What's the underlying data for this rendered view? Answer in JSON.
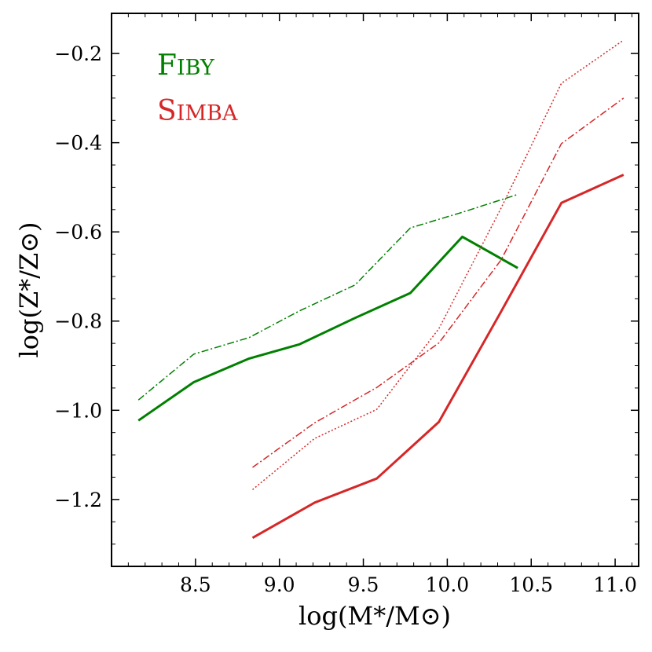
{
  "chart_data": {
    "type": "line",
    "title": "",
    "xlabel": "log(M*/M⊙)",
    "ylabel": "log(Z*/Z⊙)",
    "xlim": [
      8.0,
      11.14
    ],
    "ylim": [
      -1.35,
      -0.11
    ],
    "xticks": [
      8.5,
      9.0,
      9.5,
      10.0,
      10.5,
      11.0
    ],
    "xtick_labels": [
      "8.5",
      "9.0",
      "9.5",
      "10.0",
      "10.5",
      "11.0"
    ],
    "yticks": [
      -1.2,
      -1.0,
      -0.8,
      -0.6,
      -0.4,
      -0.2
    ],
    "ytick_labels": [
      "−1.2",
      "−1.0",
      "−0.8",
      "−0.6",
      "−0.4",
      "−0.2"
    ],
    "legend": [
      {
        "label": "FiBY",
        "color": "#008000"
      },
      {
        "label": "Simba",
        "color": "#d62728"
      }
    ],
    "legend_position": "top-left",
    "series": [
      {
        "name": "FiBY",
        "style": "solid",
        "color": "#008000",
        "x": [
          8.16,
          8.49,
          8.82,
          9.12,
          9.45,
          9.78,
          10.09,
          10.42
        ],
        "y": [
          -1.023,
          -0.937,
          -0.884,
          -0.852,
          -0.793,
          -0.737,
          -0.611,
          -0.681
        ]
      },
      {
        "name": "FiBY",
        "style": "dashdot",
        "color": "#008000",
        "x": [
          8.16,
          8.49,
          8.82,
          9.12,
          9.45,
          9.78,
          10.09,
          10.42
        ],
        "y": [
          -0.977,
          -0.874,
          -0.837,
          -0.777,
          -0.719,
          -0.591,
          -0.556,
          -0.516
        ]
      },
      {
        "name": "Simba",
        "style": "solid",
        "color": "#d62728",
        "x": [
          8.84,
          9.21,
          9.58,
          9.95,
          10.32,
          10.68,
          11.05
        ],
        "y": [
          -1.286,
          -1.207,
          -1.153,
          -1.026,
          -0.779,
          -0.535,
          -0.472
        ]
      },
      {
        "name": "Simba",
        "style": "dashdot",
        "color": "#d62728",
        "x": [
          8.84,
          9.21,
          9.58,
          9.95,
          10.32,
          10.68,
          11.05
        ],
        "y": [
          -1.128,
          -1.028,
          -0.949,
          -0.849,
          -0.663,
          -0.402,
          -0.3
        ]
      },
      {
        "name": "Simba",
        "style": "dotted",
        "color": "#d62728",
        "x": [
          8.84,
          9.21,
          9.58,
          9.95,
          10.32,
          10.68,
          11.05
        ],
        "y": [
          -1.178,
          -1.063,
          -0.998,
          -0.817,
          -0.547,
          -0.267,
          -0.17
        ]
      }
    ]
  }
}
